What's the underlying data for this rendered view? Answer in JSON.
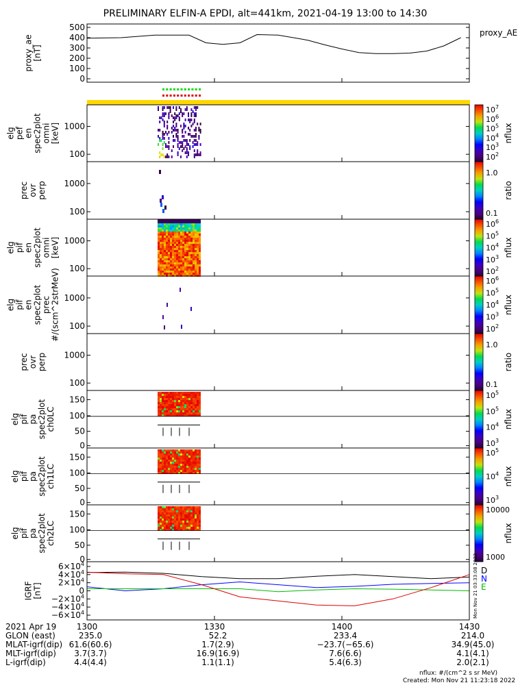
{
  "title": "PRELIMINARY ELFIN-A EPDI, alt=441km, 2021-04-19 13:00 to 14:30",
  "chart_data": [
    {
      "id": "proxy_ae",
      "type": "line",
      "ylabel_lines": [
        "proxy_ae",
        "[nT]"
      ],
      "legend": "proxy_AE",
      "ylim": [
        0,
        500
      ],
      "yticks": [
        "500",
        "400",
        "300",
        "200",
        "100",
        "0"
      ],
      "ytick_values": [
        500,
        400,
        300,
        200,
        100,
        0
      ],
      "x_minutes": [
        0,
        8,
        16,
        24,
        28,
        32,
        36,
        40,
        45,
        50,
        52,
        56,
        60,
        64,
        68,
        72,
        76,
        80,
        84,
        88
      ],
      "values": [
        395,
        400,
        425,
        425,
        350,
        335,
        350,
        430,
        425,
        390,
        375,
        330,
        290,
        255,
        245,
        245,
        250,
        270,
        320,
        400
      ]
    },
    {
      "id": "elf_pef_en_spec2plot_omni",
      "type": "heatmap",
      "ylabel_lines": [
        "elg",
        "pef",
        "en",
        "spec2plot",
        "omni",
        "[keV]"
      ],
      "yticks": [
        "1000",
        "100"
      ],
      "colorbar_ticks": [
        "10^7",
        "10^6",
        "10^5",
        "10^4",
        "10^3",
        "10^2"
      ],
      "colorbar_label": "nflux"
    },
    {
      "id": "pef_prec_ovr_perp",
      "type": "heatmap",
      "ylabel_lines": [
        "prec",
        "ovr",
        "perp"
      ],
      "yticks": [
        "1000",
        "100"
      ],
      "colorbar_ticks": [
        "1.0",
        "0.1"
      ],
      "colorbar_label": "ratio"
    },
    {
      "id": "elf_pif_en_spec2plot_omni",
      "type": "heatmap",
      "ylabel_lines": [
        "elg",
        "pif",
        "en",
        "spec2plot",
        "omni",
        "[keV]"
      ],
      "yticks": [
        "1000",
        "100"
      ],
      "colorbar_ticks": [
        "10^6",
        "10^5",
        "10^4",
        "10^3",
        "10^2"
      ],
      "colorbar_label": "nflux"
    },
    {
      "id": "elf_pif_en_spec2plot_prec",
      "type": "heatmap",
      "ylabel_lines": [
        "elg",
        "pif",
        "en",
        "spec2plot",
        "prec",
        "#/(scm^2strMeV)"
      ],
      "yticks": [
        "1000",
        "100"
      ],
      "colorbar_ticks": [
        "10^6",
        "10^5",
        "10^4",
        "10^3",
        "10^2"
      ],
      "colorbar_label": "nflux"
    },
    {
      "id": "pif_prec_ovr_perp",
      "type": "heatmap",
      "ylabel_lines": [
        "prec",
        "ovr",
        "perp"
      ],
      "yticks": [
        "1000",
        "100"
      ],
      "colorbar_ticks": [
        "1.0",
        "0.1"
      ],
      "colorbar_label": "ratio"
    },
    {
      "id": "elf_pif_pa_spec2plot_ch0LC",
      "type": "heatmap",
      "ylabel_lines": [
        "elg",
        "pif",
        "pa",
        "spec2plot",
        "ch0LC"
      ],
      "yticks": [
        "150",
        "100",
        "50",
        "0"
      ],
      "colorbar_ticks": [
        "10^5",
        "10^5",
        "10^4",
        "10^3"
      ],
      "colorbar_label": "nflux"
    },
    {
      "id": "elf_pif_pa_spec2plot_ch1LC",
      "type": "heatmap",
      "ylabel_lines": [
        "elg",
        "pif",
        "pa",
        "spec2plot",
        "ch1LC"
      ],
      "yticks": [
        "150",
        "100",
        "50",
        "0"
      ],
      "colorbar_ticks": [
        "10^5",
        "10^4",
        "10^3"
      ],
      "colorbar_label": "nflux"
    },
    {
      "id": "elf_pif_pa_spec2plot_ch2LC",
      "type": "heatmap",
      "ylabel_lines": [
        "elg",
        "pif",
        "pa",
        "spec2plot",
        "ch2LC"
      ],
      "yticks": [
        "150",
        "100",
        "50",
        "0"
      ],
      "colorbar_ticks": [
        "10000",
        "1000"
      ],
      "colorbar_label": "nflux"
    },
    {
      "id": "igrf",
      "type": "line",
      "ylabel_lines": [
        "IGRF",
        "[nT]"
      ],
      "ylim": [
        -65000,
        65000
      ],
      "yticks": [
        "6×10^4",
        "4×10^4",
        "2×10^4",
        "0",
        "−2×10^4",
        "−4×10^4",
        "−6×10^4"
      ],
      "ytick_values": [
        60000,
        40000,
        20000,
        0,
        -20000,
        -40000,
        -60000
      ],
      "x_minutes": [
        0,
        9,
        18,
        27,
        36,
        45,
        54,
        63,
        72,
        81,
        90
      ],
      "series": [
        {
          "name": "D",
          "color": "#000000",
          "values": [
            45000,
            46000,
            43000,
            35000,
            30000,
            30000,
            36000,
            40000,
            35000,
            30000,
            34000
          ]
        },
        {
          "name": "N",
          "color": "#0000ff",
          "values": [
            10000,
            0,
            5000,
            15000,
            22000,
            15000,
            8000,
            11000,
            16000,
            18000,
            20000
          ]
        },
        {
          "name": "E",
          "color": "#00bb00",
          "values": [
            5000,
            5000,
            5000,
            5000,
            5000,
            -2000,
            2000,
            5000,
            4000,
            2000,
            0
          ]
        },
        {
          "name": "",
          "color": "#dd0000",
          "values": [
            46000,
            42000,
            40000,
            15000,
            -15000,
            -25000,
            -35000,
            -37000,
            -20000,
            8000,
            40000
          ]
        }
      ],
      "legend_labels": [
        "D",
        "N",
        "E"
      ],
      "side_note": "Mon Nov 21 03:33:08 2022"
    }
  ],
  "time_axis": {
    "tick_labels": [
      "1300",
      "1330",
      "1400",
      "1430"
    ],
    "tick_minutes": [
      0,
      30,
      60,
      90
    ]
  },
  "ephemeris": {
    "labels": [
      "2021 Apr 19",
      "GLON (east)",
      "MLAT-igrf(dip)",
      "MLT-igrf(dip)",
      "L-igrf(dip)"
    ],
    "columns": [
      [
        "1300",
        "235.0",
        "61.6(60.6)",
        "3.7(3.7)",
        "4.4(4.4)"
      ],
      [
        "1330",
        "52.2",
        "1.7(2.9)",
        "16.9(16.9)",
        "1.1(1.1)"
      ],
      [
        "1400",
        "233.4",
        "−23.7(−65.6)",
        "7.6(6.6)",
        "5.4(6.3)"
      ],
      [
        "1430",
        "214.0",
        "34.9(45.0)",
        "4.1(4.1)",
        "2.0(2.1)"
      ]
    ]
  },
  "footer": {
    "units": "nflux: #/(cm^2 s sr MeV)",
    "created": "Created: Mon Nov 21 11:23:18 2022"
  },
  "colors": {
    "status_bar": "#ffd700",
    "marker_green": "#00dd00",
    "marker_red": "#dd0000"
  }
}
